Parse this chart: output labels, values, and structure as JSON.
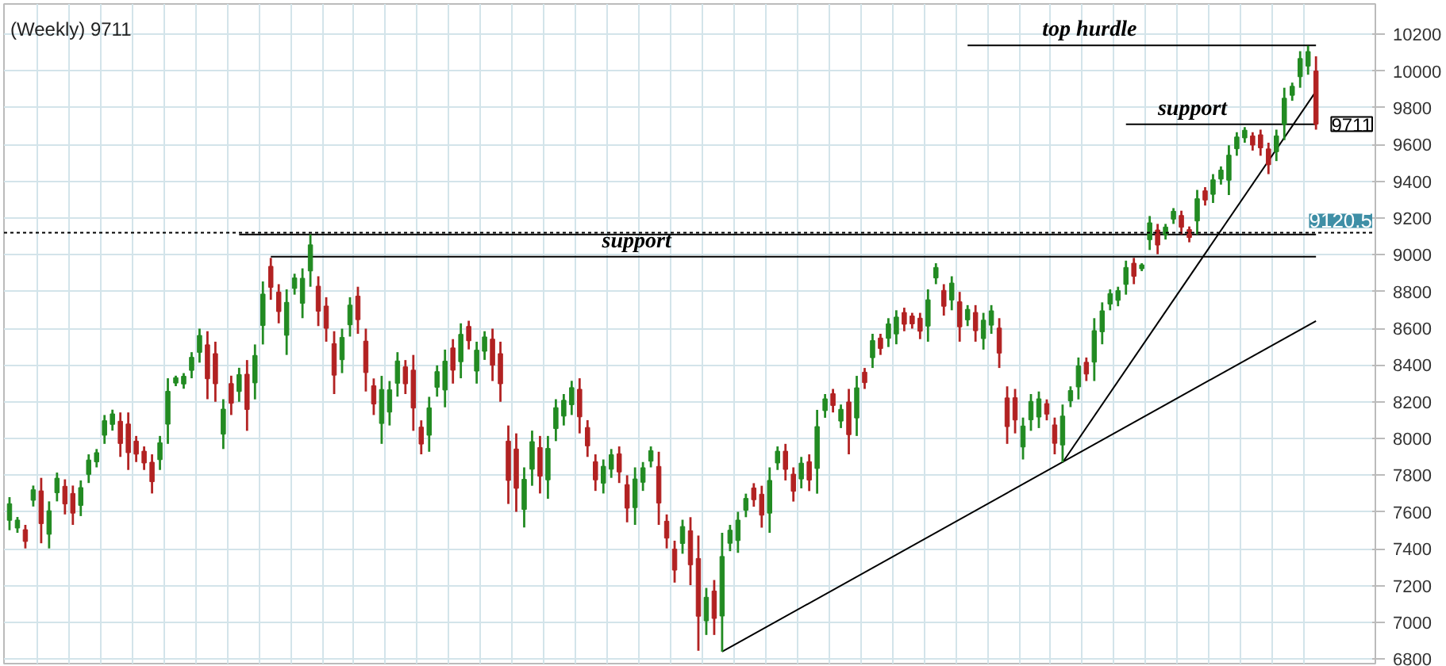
{
  "chart_data": {
    "type": "candlestick",
    "title": "(Weekly) 9711",
    "categories": [
      null,
      null,
      null,
      null,
      null,
      null,
      null,
      null,
      null,
      null,
      null,
      null,
      null,
      null,
      null,
      null,
      null,
      null,
      null,
      null,
      null,
      null,
      null,
      null,
      null,
      null,
      null,
      null,
      null,
      null,
      null,
      null,
      null,
      null,
      null,
      null,
      null,
      null,
      null,
      null,
      null,
      null,
      null,
      null,
      null,
      null,
      null,
      null,
      null,
      null,
      null,
      null,
      null,
      null,
      null,
      null,
      null,
      null,
      null,
      null,
      null,
      null,
      null,
      null,
      null,
      null,
      null,
      null,
      null,
      null,
      null,
      null,
      null,
      null,
      null,
      null,
      null,
      null,
      null,
      null,
      null,
      null,
      null,
      null,
      null,
      null,
      null,
      null,
      null,
      null,
      null,
      null,
      null,
      null,
      null,
      null,
      null,
      null,
      null,
      null,
      null,
      null,
      null,
      null,
      null,
      null,
      null,
      null,
      null,
      null,
      null,
      null,
      null,
      null,
      null,
      null,
      null,
      null,
      null,
      null,
      null,
      null,
      null,
      null,
      null,
      null,
      null,
      null,
      null,
      null,
      null,
      null,
      null,
      null,
      null,
      null,
      null,
      null,
      null,
      null,
      null,
      null,
      null,
      null,
      null,
      null,
      null,
      null,
      null,
      null,
      null,
      null,
      null,
      null,
      null,
      null,
      null,
      null,
      null,
      null,
      null,
      null,
      null,
      null,
      null,
      null
    ],
    "ohlc": [
      [
        7555,
        7681,
        7501,
        7645
      ],
      [
        7513,
        7573,
        7487,
        7556
      ],
      [
        7504,
        7530,
        7402,
        7440
      ],
      [
        7664,
        7744,
        7630,
        7721
      ],
      [
        7715,
        7786,
        7430,
        7537
      ],
      [
        7479,
        7658,
        7402,
        7607
      ],
      [
        7705,
        7815,
        7658,
        7784
      ],
      [
        7740,
        7778,
        7587,
        7644
      ],
      [
        7701,
        7744,
        7530,
        7594
      ],
      [
        7636,
        7772,
        7578,
        7733
      ],
      [
        7805,
        7914,
        7758,
        7883
      ],
      [
        7873,
        7943,
        7843,
        7923
      ],
      [
        8018,
        8128,
        7971,
        8097
      ],
      [
        8077,
        8157,
        8043,
        8134
      ],
      [
        8094,
        8142,
        7900,
        7973
      ],
      [
        8079,
        8142,
        7829,
        7923
      ],
      [
        7986,
        8014,
        7872,
        7915
      ],
      [
        7931,
        7957,
        7829,
        7867
      ],
      [
        7871,
        7914,
        7701,
        7765
      ],
      [
        7885,
        8014,
        7829,
        7977
      ],
      [
        8078,
        8328,
        7971,
        8257
      ],
      [
        8302,
        8342,
        8285,
        8331
      ],
      [
        8297,
        8356,
        8271,
        8339
      ],
      [
        8371,
        8470,
        8328,
        8442
      ],
      [
        8469,
        8598,
        8413,
        8561
      ],
      [
        8510,
        8584,
        8214,
        8325
      ],
      [
        8462,
        8527,
        8200,
        8298
      ],
      [
        8024,
        8214,
        7943,
        8160
      ],
      [
        8299,
        8342,
        8128,
        8192
      ],
      [
        8256,
        8385,
        8200,
        8348
      ],
      [
        8350,
        8427,
        8042,
        8158
      ],
      [
        8303,
        8512,
        8213,
        8452
      ],
      [
        8615,
        8855,
        8512,
        8786
      ],
      [
        8937,
        8983,
        8755,
        8823
      ],
      [
        8797,
        8840,
        8627,
        8691
      ],
      [
        8562,
        8812,
        8455,
        8741
      ],
      [
        8817,
        8897,
        8783,
        8874
      ],
      [
        8736,
        8926,
        8655,
        8872
      ],
      [
        8912,
        9111,
        8826,
        9054
      ],
      [
        8829,
        8883,
        8612,
        8693
      ],
      [
        8721,
        8769,
        8527,
        8600
      ],
      [
        8516,
        8584,
        8242,
        8345
      ],
      [
        8429,
        8598,
        8356,
        8550
      ],
      [
        8619,
        8769,
        8555,
        8726
      ],
      [
        8775,
        8826,
        8570,
        8647
      ],
      [
        8530,
        8598,
        8256,
        8359
      ],
      [
        8287,
        8327,
        8128,
        8188
      ],
      [
        8082,
        8341,
        7971,
        8267
      ],
      [
        8144,
        8313,
        8071,
        8265
      ],
      [
        8301,
        8470,
        8228,
        8422
      ],
      [
        8390,
        8427,
        8242,
        8298
      ],
      [
        8372,
        8455,
        8042,
        8166
      ],
      [
        8062,
        8099,
        7914,
        7970
      ],
      [
        8018,
        8227,
        7928,
        8167
      ],
      [
        8279,
        8398,
        8228,
        8364
      ],
      [
        8264,
        8484,
        8170,
        8421
      ],
      [
        8493,
        8541,
        8299,
        8372
      ],
      [
        8418,
        8627,
        8328,
        8567
      ],
      [
        8610,
        8641,
        8485,
        8532
      ],
      [
        8367,
        8527,
        8299,
        8481
      ],
      [
        8475,
        8584,
        8428,
        8553
      ],
      [
        8541,
        8598,
        8313,
        8399
      ],
      [
        8462,
        8527,
        8200,
        8298
      ],
      [
        7986,
        8071,
        7644,
        7772
      ],
      [
        7943,
        8028,
        7601,
        7729
      ],
      [
        7614,
        7843,
        7516,
        7778
      ],
      [
        7833,
        8043,
        7743,
        7983
      ],
      [
        7951,
        8014,
        7701,
        7795
      ],
      [
        7775,
        8014,
        7672,
        7946
      ],
      [
        8054,
        8214,
        7986,
        8168
      ],
      [
        8122,
        8242,
        8071,
        8208
      ],
      [
        8184,
        8314,
        8128,
        8277
      ],
      [
        8268,
        8328,
        8028,
        8118
      ],
      [
        8060,
        8100,
        7900,
        7960
      ],
      [
        7874,
        7914,
        7715,
        7775
      ],
      [
        7757,
        7886,
        7701,
        7849
      ],
      [
        7833,
        7943,
        7786,
        7912
      ],
      [
        7917,
        7957,
        7758,
        7818
      ],
      [
        7749,
        7800,
        7544,
        7621
      ],
      [
        7624,
        7843,
        7530,
        7780
      ],
      [
        7762,
        7872,
        7715,
        7841
      ],
      [
        7877,
        7957,
        7843,
        7934
      ],
      [
        7848,
        7928,
        7530,
        7649
      ],
      [
        7550,
        7587,
        7402,
        7458
      ],
      [
        7398,
        7444,
        7216,
        7284
      ],
      [
        7429,
        7558,
        7373,
        7521
      ],
      [
        7498,
        7572,
        7202,
        7313
      ],
      [
        7347,
        7472,
        6845,
        7033
      ],
      [
        7008,
        7187,
        6931,
        7136
      ],
      [
        7170,
        7230,
        6931,
        7021
      ],
      [
        7034,
        7487,
        6840,
        7358
      ],
      [
        7430,
        7530,
        7387,
        7501
      ],
      [
        7445,
        7601,
        7378,
        7556
      ],
      [
        7610,
        7700,
        7572,
        7674
      ],
      [
        7731,
        7757,
        7629,
        7667
      ],
      [
        7697,
        7743,
        7515,
        7583
      ],
      [
        7594,
        7843,
        7487,
        7772
      ],
      [
        7867,
        7957,
        7829,
        7931
      ],
      [
        7931,
        7971,
        7772,
        7832
      ],
      [
        7806,
        7843,
        7657,
        7713
      ],
      [
        7780,
        7900,
        7729,
        7866
      ],
      [
        7874,
        7914,
        7714,
        7774
      ],
      [
        7837,
        8156,
        7700,
        8065
      ],
      [
        8152,
        8242,
        8113,
        8216
      ],
      [
        8244,
        8270,
        8142,
        8180
      ],
      [
        8095,
        8185,
        8057,
        8159
      ],
      [
        8199,
        8270,
        7914,
        8021
      ],
      [
        8112,
        8341,
        8014,
        8276
      ],
      [
        8361,
        8384,
        8270,
        8304
      ],
      [
        8440,
        8570,
        8384,
        8533
      ],
      [
        8547,
        8570,
        8455,
        8490
      ],
      [
        8545,
        8655,
        8498,
        8624
      ],
      [
        8569,
        8698,
        8513,
        8661
      ],
      [
        8686,
        8712,
        8584,
        8622
      ],
      [
        8667,
        8684,
        8598,
        8624
      ],
      [
        8655,
        8684,
        8541,
        8584
      ],
      [
        8612,
        8812,
        8527,
        8755
      ],
      [
        8874,
        8954,
        8840,
        8931
      ],
      [
        8806,
        8840,
        8669,
        8720
      ],
      [
        8754,
        8883,
        8698,
        8846
      ],
      [
        8744,
        8798,
        8527,
        8608
      ],
      [
        8646,
        8726,
        8612,
        8703
      ],
      [
        8686,
        8726,
        8527,
        8587
      ],
      [
        8544,
        8684,
        8484,
        8644
      ],
      [
        8617,
        8726,
        8570,
        8695
      ],
      [
        8601,
        8655,
        8384,
        8465
      ],
      [
        8221,
        8284,
        7971,
        8065
      ],
      [
        8222,
        8270,
        8028,
        8101
      ],
      [
        7954,
        8114,
        7886,
        8068
      ],
      [
        8102,
        8242,
        8042,
        8202
      ],
      [
        8117,
        8256,
        8057,
        8216
      ],
      [
        8190,
        8213,
        8099,
        8133
      ],
      [
        8074,
        8114,
        7914,
        7974
      ],
      [
        7965,
        8185,
        7871,
        8122
      ],
      [
        8205,
        8284,
        8171,
        8261
      ],
      [
        8281,
        8441,
        8213,
        8395
      ],
      [
        8415,
        8441,
        8313,
        8351
      ],
      [
        8416,
        8655,
        8313,
        8587
      ],
      [
        8581,
        8741,
        8513,
        8695
      ],
      [
        8732,
        8812,
        8698,
        8789
      ],
      [
        8752,
        8826,
        8720,
        8805
      ],
      [
        8839,
        8968,
        8783,
        8931
      ],
      [
        8954,
        8983,
        8840,
        8883
      ],
      [
        8924,
        8954,
        8911,
        8945
      ],
      [
        9082,
        9211,
        9026,
        9174
      ],
      [
        9135,
        9168,
        9003,
        9053
      ],
      [
        9109,
        9168,
        9083,
        9151
      ],
      [
        9194,
        9254,
        9168,
        9237
      ],
      [
        9214,
        9240,
        9111,
        9150
      ],
      [
        9137,
        9154,
        9068,
        9094
      ],
      [
        9184,
        9353,
        9111,
        9305
      ],
      [
        9348,
        9368,
        9268,
        9298
      ],
      [
        9329,
        9439,
        9282,
        9408
      ],
      [
        9412,
        9481,
        9382,
        9461
      ],
      [
        9406,
        9596,
        9325,
        9542
      ],
      [
        9577,
        9667,
        9539,
        9641
      ],
      [
        9636,
        9695,
        9610,
        9678
      ],
      [
        9647,
        9667,
        9567,
        9597
      ],
      [
        9653,
        9681,
        9539,
        9582
      ],
      [
        9576,
        9610,
        9439,
        9490
      ],
      [
        9561,
        9681,
        9510,
        9647
      ],
      [
        9710,
        9909,
        9624,
        9852
      ],
      [
        9868,
        9937,
        9838,
        9917
      ],
      [
        9969,
        10108,
        9909,
        10068
      ],
      [
        10027,
        10137,
        9980,
        10106
      ],
      [
        10000,
        10080,
        9681,
        9711
      ]
    ],
    "colors": [
      "#228b22",
      "#228b22",
      "#b22222",
      "#228b22",
      "#b22222",
      "#228b22",
      "#228b22",
      "#b22222",
      "#b22222",
      "#228b22",
      "#228b22",
      "#228b22",
      "#228b22",
      "#228b22",
      "#b22222",
      "#b22222",
      "#b22222",
      "#b22222",
      "#b22222",
      "#228b22",
      "#228b22",
      "#228b22",
      "#228b22",
      "#228b22",
      "#228b22",
      "#b22222",
      "#b22222",
      "#228b22",
      "#b22222",
      "#228b22",
      "#b22222",
      "#228b22",
      "#228b22",
      "#b22222",
      "#b22222",
      "#228b22",
      "#228b22",
      "#228b22",
      "#228b22",
      "#b22222",
      "#b22222",
      "#b22222",
      "#228b22",
      "#228b22",
      "#b22222",
      "#b22222",
      "#b22222",
      "#228b22",
      "#228b22",
      "#228b22",
      "#b22222",
      "#b22222",
      "#b22222",
      "#228b22",
      "#228b22",
      "#228b22",
      "#b22222",
      "#228b22",
      "#b22222",
      "#228b22",
      "#228b22",
      "#b22222",
      "#b22222",
      "#b22222",
      "#b22222",
      "#228b22",
      "#228b22",
      "#b22222",
      "#228b22",
      "#228b22",
      "#228b22",
      "#228b22",
      "#b22222",
      "#b22222",
      "#b22222",
      "#228b22",
      "#228b22",
      "#b22222",
      "#b22222",
      "#228b22",
      "#228b22",
      "#228b22",
      "#b22222",
      "#b22222",
      "#b22222",
      "#228b22",
      "#b22222",
      "#b22222",
      "#228b22",
      "#b22222",
      "#228b22",
      "#228b22",
      "#228b22",
      "#228b22",
      "#b22222",
      "#b22222",
      "#228b22",
      "#228b22",
      "#b22222",
      "#b22222",
      "#228b22",
      "#b22222",
      "#228b22",
      "#228b22",
      "#b22222",
      "#228b22",
      "#b22222",
      "#228b22",
      "#b22222",
      "#228b22",
      "#b22222",
      "#228b22",
      "#228b22",
      "#b22222",
      "#b22222",
      "#b22222",
      "#228b22",
      "#228b22",
      "#b22222",
      "#228b22",
      "#b22222",
      "#228b22",
      "#b22222",
      "#228b22",
      "#228b22",
      "#b22222",
      "#b22222",
      "#b22222",
      "#228b22",
      "#228b22",
      "#228b22",
      "#b22222",
      "#b22222",
      "#228b22",
      "#228b22",
      "#228b22",
      "#b22222",
      "#228b22",
      "#228b22",
      "#228b22",
      "#228b22",
      "#228b22",
      "#b22222",
      "#228b22",
      "#228b22",
      "#b22222",
      "#228b22",
      "#228b22",
      "#b22222",
      "#b22222",
      "#228b22",
      "#b22222",
      "#228b22",
      "#228b22",
      "#228b22",
      "#228b22",
      "#228b22",
      "#b22222",
      "#b22222",
      "#b22222",
      "#228b22",
      "#228b22",
      "#228b22",
      "#228b22",
      "#228b22",
      "#b22222"
    ],
    "series": [
      {
        "type": "line",
        "color": "#000000",
        "values": [
          null,
          null,
          null,
          null,
          null,
          null,
          null,
          null,
          null,
          null,
          null,
          null,
          null,
          null,
          null,
          null,
          null,
          null,
          null,
          null,
          null,
          null,
          null,
          null,
          null,
          null,
          null,
          null,
          null,
          null,
          null,
          null,
          null,
          null,
          null,
          null,
          null,
          null,
          null,
          null,
          null,
          null,
          null,
          null,
          null,
          null,
          null,
          null,
          null,
          null,
          null,
          null,
          null,
          null,
          null,
          null,
          null,
          null,
          null,
          null,
          null,
          null,
          null,
          null,
          null,
          null,
          null,
          null,
          null,
          null,
          null,
          null,
          null,
          null,
          null,
          null,
          null,
          null,
          null,
          null,
          null,
          null,
          null,
          null,
          null,
          null,
          null,
          null,
          null,
          null,
          null,
          null,
          null,
          null,
          null,
          null,
          null,
          null,
          null,
          null,
          null,
          null,
          null,
          null,
          null,
          null,
          null,
          null,
          null,
          null,
          null,
          null,
          null,
          null,
          null,
          null,
          null,
          null,
          null,
          null,
          null,
          10140,
          null,
          null,
          null,
          null,
          null,
          null,
          null,
          null,
          null,
          null,
          null,
          null,
          null,
          null,
          null,
          null,
          null,
          null,
          null,
          null,
          null,
          null,
          null,
          null,
          null,
          null,
          null,
          null,
          null,
          null,
          null,
          null,
          null,
          null,
          null,
          null,
          null,
          null,
          null,
          null,
          null,
          null,
          null,
          10140
        ]
      },
      {
        "type": "line",
        "color": "#000000",
        "values": [
          null,
          null,
          null,
          null,
          null,
          null,
          null,
          null,
          null,
          null,
          null,
          null,
          null,
          null,
          null,
          null,
          null,
          null,
          null,
          null,
          null,
          null,
          null,
          null,
          null,
          null,
          null,
          null,
          null,
          null,
          null,
          null,
          null,
          null,
          null,
          null,
          null,
          null,
          null,
          null,
          null,
          null,
          null,
          null,
          null,
          null,
          null,
          null,
          null,
          null,
          null,
          null,
          null,
          null,
          null,
          null,
          null,
          null,
          null,
          null,
          null,
          null,
          null,
          null,
          null,
          null,
          null,
          null,
          null,
          null,
          null,
          null,
          null,
          null,
          null,
          null,
          null,
          null,
          null,
          null,
          null,
          null,
          null,
          null,
          null,
          null,
          null,
          null,
          null,
          null,
          null,
          null,
          null,
          null,
          null,
          null,
          null,
          null,
          null,
          null,
          null,
          null,
          null,
          null,
          null,
          null,
          null,
          null,
          null,
          null,
          null,
          null,
          null,
          null,
          null,
          null,
          null,
          null,
          null,
          null,
          null,
          null,
          null,
          null,
          null,
          null,
          null,
          null,
          null,
          null,
          null,
          null,
          null,
          null,
          null,
          null,
          null,
          null,
          null,
          null,
          null,
          9710,
          null,
          null,
          null,
          null,
          null,
          null,
          null,
          null,
          null,
          null,
          null,
          null,
          null,
          null,
          null,
          null,
          null,
          null,
          null,
          null,
          null,
          null,
          null,
          9710
        ]
      },
      {
        "type": "line",
        "color": "#000000",
        "values": [
          null,
          null,
          null,
          null,
          null,
          null,
          null,
          null,
          null,
          null,
          null,
          null,
          null,
          null,
          null,
          null,
          null,
          null,
          null,
          null,
          null,
          null,
          null,
          null,
          null,
          null,
          null,
          null,
          null,
          null,
          null,
          null,
          null,
          8990,
          null,
          null,
          null,
          null,
          null,
          null,
          null,
          null,
          null,
          null,
          null,
          null,
          null,
          null,
          null,
          null,
          null,
          null,
          null,
          null,
          null,
          null,
          null,
          null,
          null,
          null,
          null,
          null,
          null,
          null,
          null,
          null,
          null,
          null,
          null,
          null,
          null,
          null,
          null,
          null,
          null,
          null,
          null,
          null,
          null,
          null,
          null,
          null,
          null,
          null,
          null,
          null,
          null,
          null,
          null,
          null,
          null,
          null,
          null,
          null,
          null,
          null,
          null,
          null,
          null,
          null,
          null,
          null,
          null,
          null,
          null,
          null,
          null,
          null,
          null,
          null,
          null,
          null,
          null,
          null,
          null,
          null,
          null,
          null,
          null,
          null,
          null,
          null,
          null,
          null,
          null,
          null,
          null,
          null,
          null,
          null,
          null,
          null,
          null,
          null,
          null,
          null,
          null,
          null,
          null,
          null,
          null,
          null,
          null,
          null,
          null,
          null,
          null,
          null,
          null,
          null,
          null,
          null,
          null,
          null,
          null,
          null,
          null,
          null,
          null,
          null,
          null,
          null,
          null,
          null,
          null,
          8990
        ]
      },
      {
        "type": "line",
        "color": "#000000",
        "values": [
          null,
          null,
          null,
          null,
          null,
          null,
          null,
          null,
          null,
          null,
          null,
          null,
          null,
          null,
          null,
          null,
          null,
          null,
          null,
          null,
          null,
          null,
          null,
          null,
          null,
          null,
          null,
          null,
          null,
          null,
          null,
          null,
          null,
          null,
          null,
          null,
          null,
          null,
          null,
          null,
          null,
          null,
          null,
          null,
          null,
          null,
          null,
          null,
          null,
          null,
          null,
          null,
          null,
          null,
          null,
          null,
          null,
          null,
          null,
          null,
          null,
          null,
          null,
          null,
          null,
          null,
          null,
          null,
          null,
          null,
          null,
          null,
          null,
          null,
          null,
          null,
          null,
          null,
          null,
          null,
          null,
          null,
          null,
          null,
          null,
          null,
          null,
          null,
          null,
          null,
          6840,
          null,
          null,
          null,
          null,
          null,
          null,
          null,
          null,
          null,
          null,
          null,
          null,
          null,
          null,
          null,
          null,
          null,
          null,
          null,
          null,
          null,
          null,
          null,
          null,
          null,
          null,
          null,
          null,
          null,
          null,
          null,
          null,
          null,
          null,
          null,
          null,
          null,
          null,
          null,
          null,
          null,
          null,
          null,
          null,
          null,
          null,
          null,
          null,
          null,
          null,
          null,
          null,
          null,
          null,
          null,
          null,
          null,
          null,
          null,
          null,
          null,
          null,
          null,
          null,
          null,
          null,
          null,
          null,
          null,
          null,
          null,
          null,
          null,
          null,
          8640
        ]
      },
      {
        "type": "line",
        "color": "#000000",
        "values": [
          null,
          null,
          null,
          null,
          null,
          null,
          null,
          null,
          null,
          null,
          null,
          null,
          null,
          null,
          null,
          null,
          null,
          null,
          null,
          null,
          null,
          null,
          null,
          null,
          null,
          null,
          null,
          null,
          null,
          null,
          null,
          null,
          null,
          null,
          null,
          null,
          null,
          null,
          null,
          null,
          null,
          null,
          null,
          null,
          null,
          null,
          null,
          null,
          null,
          null,
          null,
          null,
          null,
          null,
          null,
          null,
          null,
          null,
          null,
          null,
          null,
          null,
          null,
          null,
          null,
          null,
          null,
          null,
          null,
          null,
          null,
          null,
          null,
          null,
          null,
          null,
          null,
          null,
          null,
          null,
          null,
          null,
          null,
          null,
          null,
          null,
          null,
          null,
          null,
          null,
          null,
          null,
          null,
          null,
          null,
          null,
          null,
          null,
          null,
          null,
          null,
          null,
          null,
          null,
          null,
          null,
          null,
          null,
          null,
          null,
          null,
          null,
          null,
          null,
          null,
          null,
          null,
          null,
          null,
          null,
          null,
          null,
          null,
          null,
          null,
          null,
          null,
          null,
          null,
          null,
          null,
          null,
          null,
          7870,
          null,
          null,
          null,
          null,
          null,
          null,
          null,
          null,
          null,
          null,
          null,
          null,
          null,
          null,
          null,
          null,
          null,
          null,
          null,
          null,
          null,
          null,
          null,
          null,
          null,
          null,
          null,
          null,
          null,
          null,
          null,
          9890
        ]
      },
      {
        "type": "line",
        "color": "#000000",
        "values": [
          null,
          null,
          null,
          null,
          null,
          null,
          null,
          null,
          null,
          null,
          null,
          null,
          null,
          null,
          null,
          null,
          null,
          null,
          null,
          null,
          null,
          null,
          null,
          null,
          null,
          null,
          null,
          null,
          null,
          9110,
          null,
          null,
          null,
          null,
          null,
          null,
          null,
          null,
          null,
          null,
          null,
          null,
          null,
          null,
          null,
          null,
          null,
          null,
          null,
          null,
          null,
          null,
          null,
          null,
          null,
          null,
          null,
          null,
          null,
          null,
          null,
          null,
          null,
          null,
          null,
          null,
          null,
          null,
          null,
          null,
          null,
          null,
          null,
          null,
          null,
          null,
          null,
          null,
          null,
          null,
          null,
          null,
          null,
          null,
          null,
          null,
          null,
          null,
          null,
          null,
          null,
          null,
          null,
          null,
          null,
          null,
          null,
          null,
          null,
          null,
          null,
          null,
          null,
          null,
          null,
          null,
          null,
          null,
          null,
          null,
          null,
          null,
          null,
          null,
          null,
          null,
          null,
          null,
          null,
          null,
          null,
          null,
          null,
          null,
          null,
          null,
          null,
          null,
          null,
          null,
          null,
          null,
          null,
          null,
          null,
          null,
          null,
          null,
          null,
          null,
          null,
          null,
          null,
          null,
          null,
          null,
          null,
          null,
          null,
          null,
          null,
          null,
          null,
          null,
          null,
          null,
          null,
          null,
          null,
          null,
          null,
          null,
          null,
          null,
          null,
          9110
        ]
      }
    ],
    "ref_lines": [
      {
        "axis": "y",
        "value": 9120.5,
        "label": "9120.5",
        "color": "#000000",
        "line_style": "dotted"
      }
    ],
    "annotations": [
      "top hurdle",
      "support",
      "support",
      "9711"
    ],
    "ylim": [
      6775,
      10365
    ],
    "yticks": [
      6800,
      7000,
      7200,
      7400,
      7600,
      7800,
      8000,
      8200,
      8400,
      8600,
      8800,
      9000,
      9200,
      9400,
      9600,
      9800,
      10000,
      10200
    ],
    "tick_labels": "y",
    "grid": true
  }
}
